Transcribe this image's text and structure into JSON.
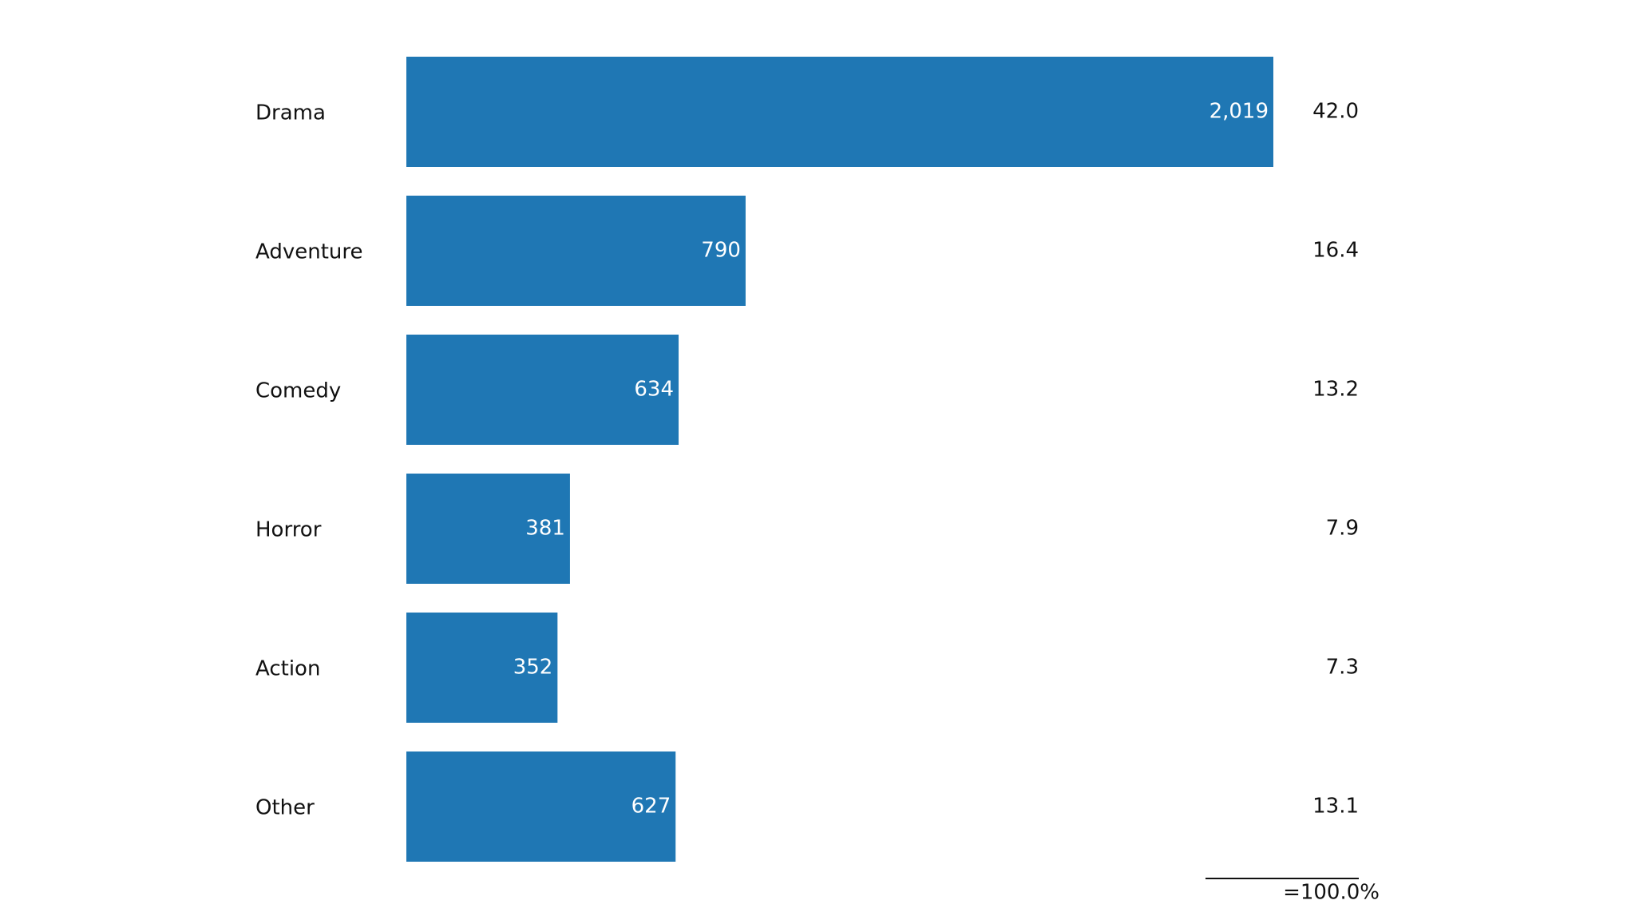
{
  "chart_data": {
    "type": "bar",
    "orientation": "horizontal",
    "categories": [
      "Drama",
      "Adventure",
      "Comedy",
      "Horror",
      "Action",
      "Other"
    ],
    "values": [
      2019,
      790,
      634,
      381,
      352,
      627
    ],
    "value_labels": [
      "2,019",
      "790",
      "634",
      "381",
      "352",
      "627"
    ],
    "color": "#1f77b4",
    "shares": [
      42.0,
      16.4,
      13.2,
      7.9,
      7.3,
      13.1
    ],
    "share_labels": [
      "42.0",
      "16.4",
      "13.2",
      "7.9",
      "7.3",
      "13.1"
    ],
    "total_label": "=100.0%"
  }
}
